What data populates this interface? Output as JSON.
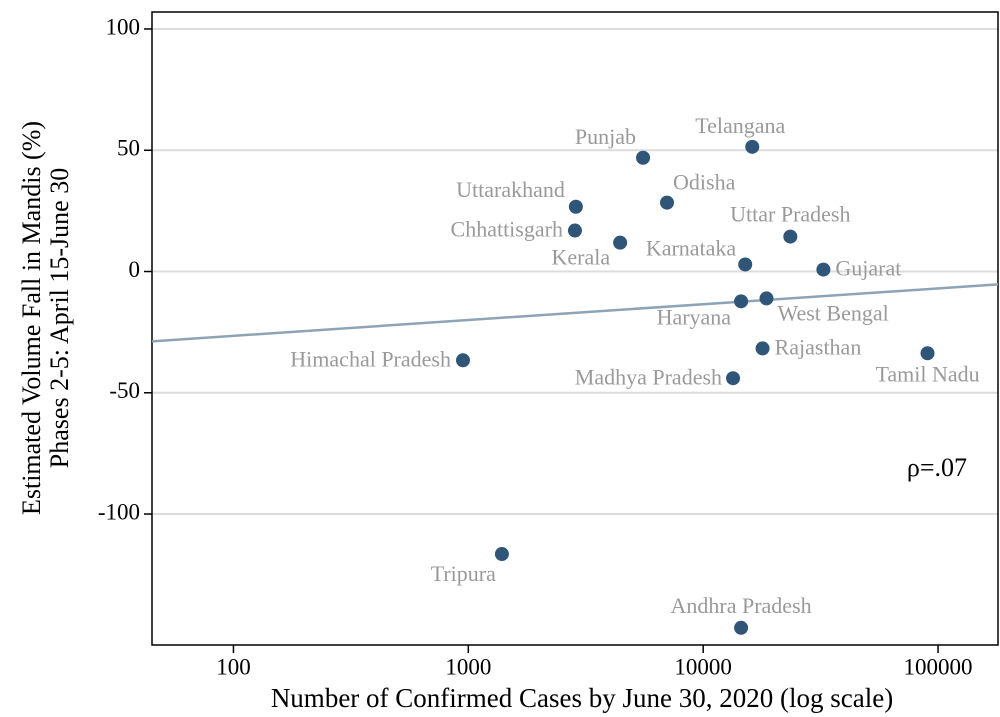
{
  "chart_data": {
    "type": "scatter",
    "x_label": "Number of Confirmed Cases by June 30, 2020 (log scale)",
    "y_label": [
      "Estimated Volume Fall in Mandis (%)",
      "Phases 2-5: April 15-June 30"
    ],
    "x_scale": "log",
    "xlim": [
      45,
      180000
    ],
    "xticks": [
      100,
      1000,
      10000,
      100000
    ],
    "ylim": [
      -154,
      107
    ],
    "yticks": [
      100,
      50,
      0,
      -50,
      -100
    ],
    "grid": true,
    "color": "#2f5679",
    "label_color": "#9a9a9a",
    "points": [
      {
        "label": "Punjab",
        "x": 5546,
        "y": 46.9
      },
      {
        "label": "Telangana",
        "x": 16180,
        "y": 51.4
      },
      {
        "label": "Odisha",
        "x": 7015,
        "y": 28.4
      },
      {
        "label": "Uttarakhand",
        "x": 2870,
        "y": 26.7
      },
      {
        "label": "Chhattisgarh",
        "x": 2845,
        "y": 16.9
      },
      {
        "label": "Kerala",
        "x": 4430,
        "y": 11.9
      },
      {
        "label": "Uttar Pradesh",
        "x": 23500,
        "y": 14.4
      },
      {
        "label": "Karnataka",
        "x": 15100,
        "y": 2.9
      },
      {
        "label": "Gujarat",
        "x": 32500,
        "y": 0.8
      },
      {
        "label": "Haryana",
        "x": 14500,
        "y": -12.3
      },
      {
        "label": "West Bengal",
        "x": 18600,
        "y": -11.1
      },
      {
        "label": "Himachal Pradesh",
        "x": 949,
        "y": -36.6
      },
      {
        "label": "Rajasthan",
        "x": 17900,
        "y": -31.7
      },
      {
        "label": "Tamil Nadu",
        "x": 90200,
        "y": -33.7
      },
      {
        "label": "Madhya Pradesh",
        "x": 13400,
        "y": -44
      },
      {
        "label": "Tripura",
        "x": 1390,
        "y": -116.5
      },
      {
        "label": "Andhra Pradesh",
        "x": 14500,
        "y": -146.9
      }
    ],
    "fit_line": {
      "x": [
        45,
        180000
      ],
      "y": [
        -28.8,
        -5.3
      ],
      "color": "#8ea4b6"
    },
    "annotation": "ρ=.07"
  }
}
